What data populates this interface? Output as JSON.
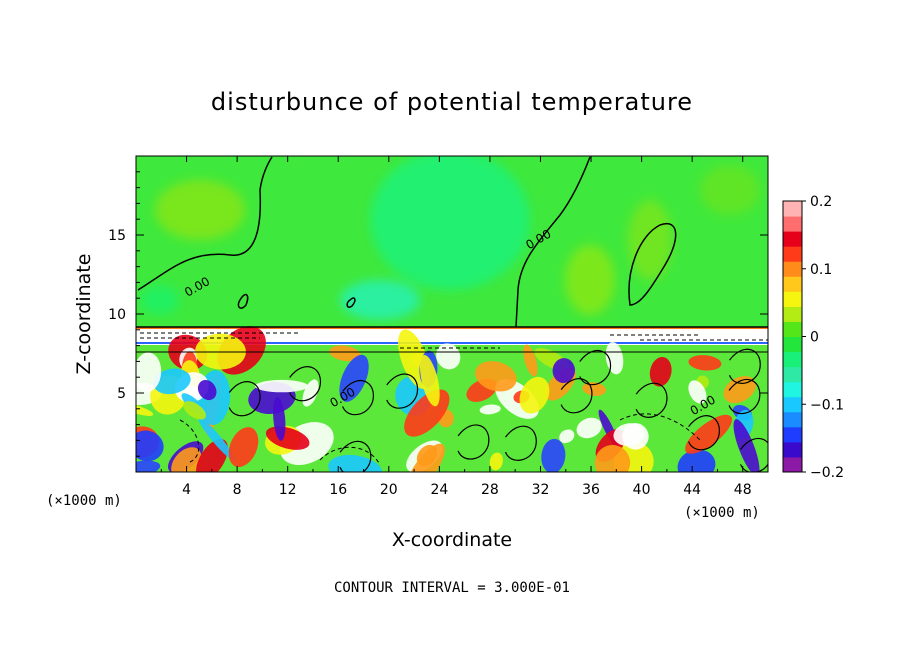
{
  "chart_data": {
    "type": "heatmap",
    "title": "disturbunce of potential temperature",
    "xlabel": "X-coordinate",
    "ylabel": "Z-coordinate",
    "x_unit": "(×1000 m)",
    "y_unit": "(×1000 m)",
    "xlim": [
      0,
      50
    ],
    "ylim": [
      0,
      20
    ],
    "x_ticks": [
      4,
      8,
      12,
      16,
      20,
      24,
      28,
      32,
      36,
      40,
      44,
      48
    ],
    "y_ticks": [
      5,
      10,
      15
    ],
    "colorbar": {
      "range": [
        -0.2,
        0.2
      ],
      "tick_labels": [
        {
          "value": 0.2,
          "label": "0.2"
        },
        {
          "value": 0.1,
          "label": "0.1"
        },
        {
          "value": 0,
          "label": "0"
        },
        {
          "value": -0.1,
          "label": "−0.1"
        },
        {
          "value": -0.2,
          "label": "−0.2"
        }
      ],
      "colors": [
        "#8c1aa6",
        "#3a0acc",
        "#1f3dff",
        "#1a8cff",
        "#19c8ff",
        "#1ff5e0",
        "#2ee8a6",
        "#19f07a",
        "#22e63b",
        "#55e61a",
        "#b3eb14",
        "#f5f50f",
        "#ffc81a",
        "#ff8c1a",
        "#ff3b1a",
        "#e6001a",
        "#ff6e6e",
        "#ffb3b3"
      ]
    },
    "contour_labels": [
      {
        "x": 5.0,
        "z": 11.5,
        "text": "0.00"
      },
      {
        "x": 32.0,
        "z": 14.5,
        "text": "0.00"
      },
      {
        "x": 16.5,
        "z": 4.5,
        "text": "0.00"
      },
      {
        "x": 45.0,
        "z": 4.0,
        "text": "0.00"
      }
    ],
    "contour_interval_text": "CONTOUR INTERVAL = 3.000E-01"
  }
}
